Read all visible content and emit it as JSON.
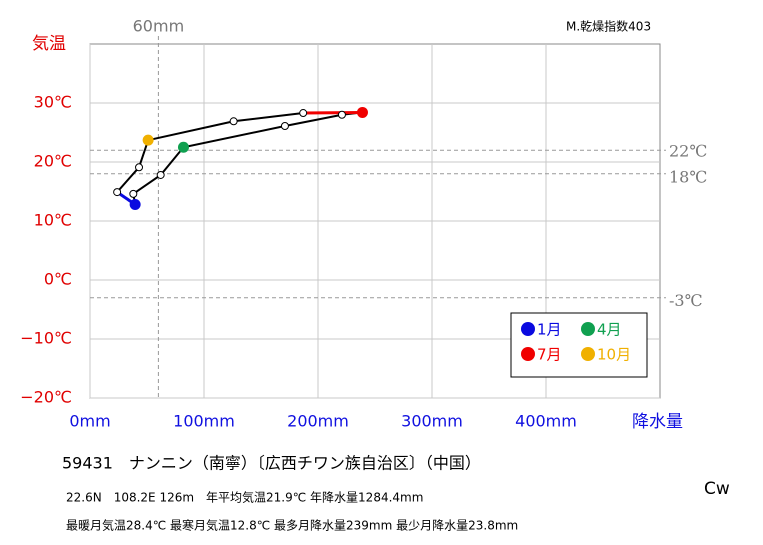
{
  "chart_data": {
    "type": "climograph",
    "y_label": "気温",
    "x_label": "降水量",
    "index_label": "M.乾燥指数403",
    "x": [
      39.6,
      38.0,
      62.0,
      82.0,
      171.0,
      221.0,
      239.0,
      187.0,
      126.0,
      51.0,
      43.0,
      23.8
    ],
    "series": [
      {
        "values": [
          12.8,
          14.6,
          17.8,
          22.5,
          26.1,
          28.0,
          28.4,
          28.3,
          26.9,
          23.7,
          19.1,
          14.9
        ],
        "color": "#000000"
      }
    ],
    "highlights": [
      {
        "name": "1月",
        "color": "#0a0ae0",
        "index": 0
      },
      {
        "name": "4月",
        "color": "#10a050",
        "index": 3
      },
      {
        "name": "7月",
        "color": "#f00000",
        "index": 6
      },
      {
        "name": "10月",
        "color": "#f0b000",
        "index": 9
      }
    ],
    "xlim": [
      0,
      500
    ],
    "ylim": [
      -20,
      40
    ],
    "xticks": [
      {
        "value": 0,
        "label": "0mm"
      },
      {
        "value": 100,
        "label": "100mm"
      },
      {
        "value": 200,
        "label": "200mm"
      },
      {
        "value": 300,
        "label": "300mm"
      },
      {
        "value": 400,
        "label": "400mm"
      }
    ],
    "yticks": [
      {
        "value": -20,
        "label": "−20℃"
      },
      {
        "value": -10,
        "label": "−10℃"
      },
      {
        "value": 0,
        "label": "0℃"
      },
      {
        "value": 10,
        "label": "10℃"
      },
      {
        "value": 20,
        "label": "20℃"
      },
      {
        "value": 30,
        "label": "30℃"
      }
    ],
    "grid": true,
    "x_reference": [
      {
        "value": 60,
        "label": "60mm"
      }
    ],
    "y_reference": [
      {
        "value": 22,
        "label": "22℃"
      },
      {
        "value": 18,
        "label": "18℃"
      },
      {
        "value": -3,
        "label": "-3℃"
      }
    ],
    "station": "59431　ナンニン（南寧）〔広西チワン族自治区〕（中国）",
    "info_line1": "22.6N　108.2E 126m　年平均気温21.9℃ 年降水量1284.4mm",
    "info_line2": "最暖月気温28.4℃ 最寒月気温12.8℃ 最多月降水量239mm 最少月降水量23.8mm",
    "climate": "Cw"
  }
}
